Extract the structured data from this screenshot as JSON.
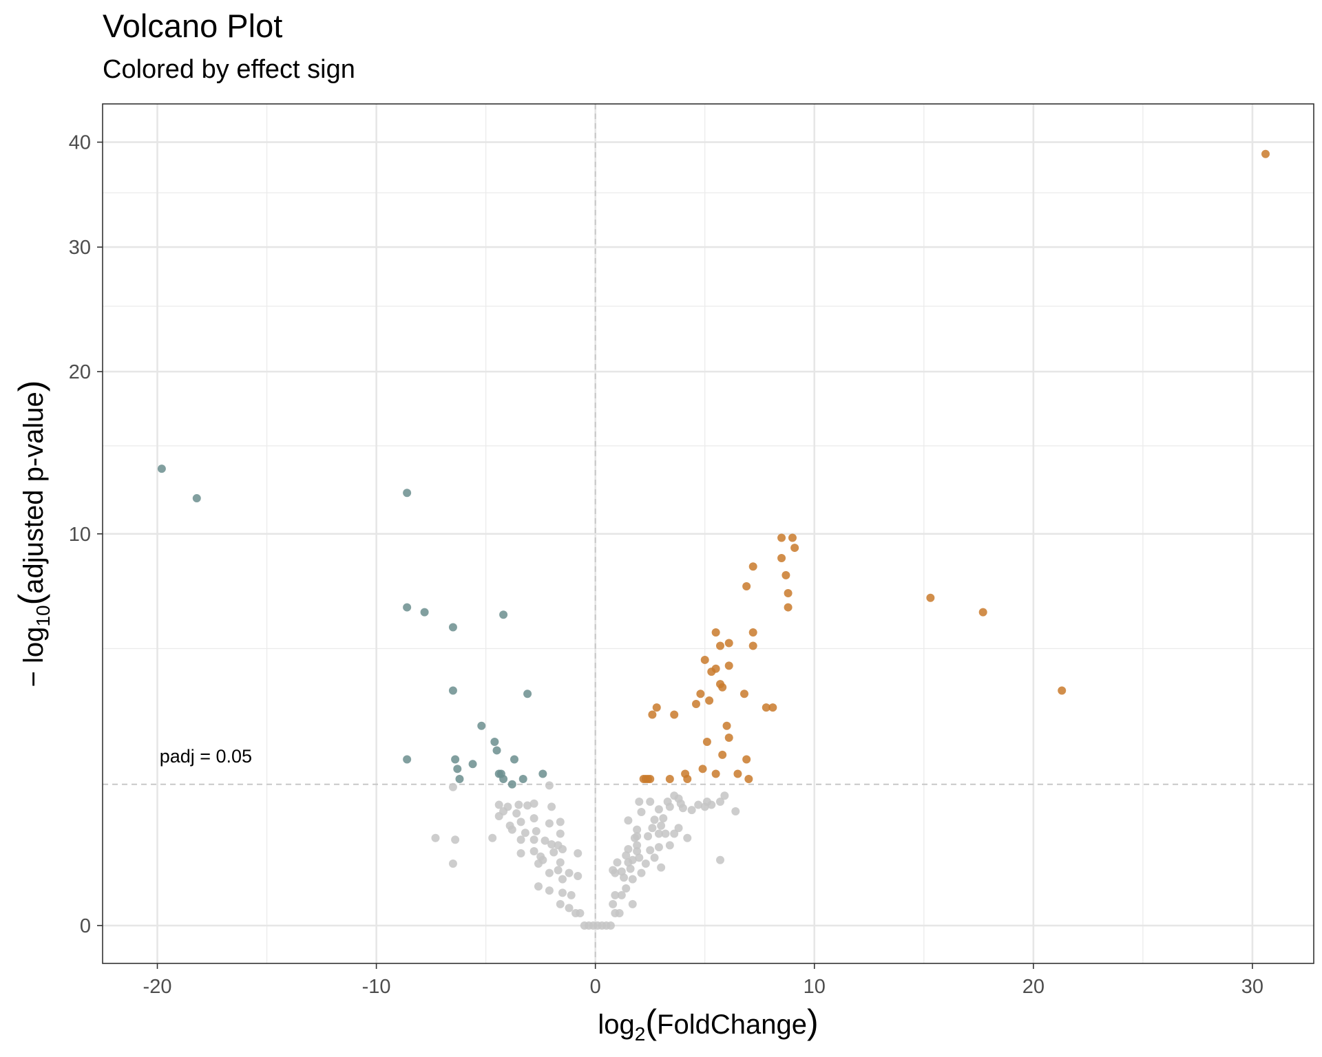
{
  "chart_data": {
    "type": "scatter",
    "title": "Volcano Plot",
    "subtitle": "Colored by effect sign",
    "xlabel": {
      "prefix": "log",
      "sub": "2",
      "inner": "FoldChange"
    },
    "ylabel": {
      "prefix": "− log",
      "sub": "10",
      "inner": "adjusted p-value"
    },
    "xlim": [
      -22.5,
      32.8
    ],
    "y_scale": "sqrt",
    "ylim": [
      -0.05,
      44
    ],
    "x_ticks": [
      -20,
      -10,
      0,
      10,
      20,
      30
    ],
    "x_tick_labels": [
      "-20",
      "-10",
      "0",
      "10",
      "20",
      "30"
    ],
    "y_ticks": [
      0,
      10,
      20,
      30,
      40
    ],
    "y_tick_labels": [
      "0",
      "10",
      "20",
      "30",
      "40"
    ],
    "grid": true,
    "colors": {
      "negative": "#6b8e8e",
      "positive": "#c97a2b",
      "nonsig": "#c4c4c4",
      "ref_line": "#c8c8c8"
    },
    "threshold": {
      "y": 1.3,
      "label": "padj = 0.05"
    },
    "series": [
      {
        "key": "negative",
        "points": [
          [
            -19.8,
            13.6
          ],
          [
            -18.2,
            11.9
          ],
          [
            -8.6,
            12.2
          ],
          [
            -8.6,
            6.6
          ],
          [
            -7.8,
            6.4
          ],
          [
            -6.5,
            5.8
          ],
          [
            -4.2,
            6.3
          ],
          [
            -6.5,
            3.6
          ],
          [
            -3.1,
            3.5
          ],
          [
            -5.2,
            2.6
          ],
          [
            -4.6,
            2.2
          ],
          [
            -4.5,
            2.0
          ],
          [
            -8.6,
            1.8
          ],
          [
            -6.4,
            1.8
          ],
          [
            -5.6,
            1.7
          ],
          [
            -3.7,
            1.8
          ],
          [
            -6.3,
            1.6
          ],
          [
            -4.4,
            1.5
          ],
          [
            -4.3,
            1.5
          ],
          [
            -2.4,
            1.5
          ],
          [
            -6.2,
            1.4
          ],
          [
            -4.2,
            1.4
          ],
          [
            -3.3,
            1.4
          ],
          [
            -3.8,
            1.3
          ]
        ]
      },
      {
        "key": "positive",
        "points": [
          [
            30.6,
            38.8
          ],
          [
            8.5,
            9.8
          ],
          [
            9.0,
            9.8
          ],
          [
            9.1,
            9.3
          ],
          [
            8.5,
            8.8
          ],
          [
            7.2,
            8.4
          ],
          [
            8.7,
            8.0
          ],
          [
            6.9,
            7.5
          ],
          [
            8.8,
            7.2
          ],
          [
            15.3,
            7.0
          ],
          [
            8.8,
            6.6
          ],
          [
            17.7,
            6.4
          ],
          [
            5.5,
            5.6
          ],
          [
            7.2,
            5.6
          ],
          [
            6.1,
            5.2
          ],
          [
            5.7,
            5.1
          ],
          [
            7.2,
            5.1
          ],
          [
            5.0,
            4.6
          ],
          [
            6.1,
            4.4
          ],
          [
            5.5,
            4.3
          ],
          [
            5.3,
            4.2
          ],
          [
            21.3,
            3.6
          ],
          [
            5.7,
            3.8
          ],
          [
            5.8,
            3.7
          ],
          [
            4.8,
            3.5
          ],
          [
            6.8,
            3.5
          ],
          [
            5.2,
            3.3
          ],
          [
            4.6,
            3.2
          ],
          [
            2.8,
            3.1
          ],
          [
            7.8,
            3.1
          ],
          [
            8.1,
            3.1
          ],
          [
            2.6,
            2.9
          ],
          [
            3.6,
            2.9
          ],
          [
            6.0,
            2.6
          ],
          [
            6.1,
            2.3
          ],
          [
            5.1,
            2.2
          ],
          [
            5.8,
            1.9
          ],
          [
            6.9,
            1.8
          ],
          [
            4.9,
            1.6
          ],
          [
            4.1,
            1.5
          ],
          [
            5.5,
            1.5
          ],
          [
            6.5,
            1.5
          ],
          [
            2.2,
            1.4
          ],
          [
            2.3,
            1.4
          ],
          [
            2.4,
            1.4
          ],
          [
            4.2,
            1.4
          ],
          [
            7.0,
            1.4
          ],
          [
            2.5,
            1.4
          ],
          [
            3.4,
            1.4
          ]
        ]
      },
      {
        "key": "nonsig",
        "points": [
          [
            -6.5,
            1.25
          ],
          [
            -2.1,
            1.28
          ],
          [
            -4.4,
            0.95
          ],
          [
            -4.0,
            0.92
          ],
          [
            -3.5,
            0.95
          ],
          [
            -3.1,
            0.94
          ],
          [
            -2.8,
            0.97
          ],
          [
            -2.0,
            0.92
          ],
          [
            -4.2,
            0.85
          ],
          [
            -4.4,
            0.78
          ],
          [
            -3.6,
            0.82
          ],
          [
            -2.8,
            0.75
          ],
          [
            -3.4,
            0.7
          ],
          [
            -3.9,
            0.65
          ],
          [
            -1.6,
            0.7
          ],
          [
            -2.1,
            0.68
          ],
          [
            -3.8,
            0.6
          ],
          [
            -3.2,
            0.56
          ],
          [
            -2.7,
            0.58
          ],
          [
            -1.6,
            0.55
          ],
          [
            -7.3,
            0.5
          ],
          [
            -6.4,
            0.48
          ],
          [
            -4.7,
            0.5
          ],
          [
            -3.4,
            0.48
          ],
          [
            -2.8,
            0.48
          ],
          [
            -2.3,
            0.47
          ],
          [
            -2.0,
            0.43
          ],
          [
            -1.7,
            0.42
          ],
          [
            -1.5,
            0.38
          ],
          [
            -1.9,
            0.35
          ],
          [
            -2.8,
            0.36
          ],
          [
            -3.4,
            0.34
          ],
          [
            -2.5,
            0.31
          ],
          [
            -2.4,
            0.28
          ],
          [
            -0.8,
            0.34
          ],
          [
            -6.5,
            0.25
          ],
          [
            -2.6,
            0.25
          ],
          [
            -1.6,
            0.26
          ],
          [
            -1.7,
            0.2
          ],
          [
            -2.1,
            0.18
          ],
          [
            -1.2,
            0.18
          ],
          [
            -1.5,
            0.14
          ],
          [
            -0.8,
            0.16
          ],
          [
            -2.6,
            0.1
          ],
          [
            -2.1,
            0.08
          ],
          [
            -1.5,
            0.07
          ],
          [
            -1.1,
            0.06
          ],
          [
            -1.6,
            0.03
          ],
          [
            -1.2,
            0.02
          ],
          [
            -0.9,
            0.01
          ],
          [
            -0.7,
            0.01
          ],
          [
            -0.5,
            0.0
          ],
          [
            -0.3,
            0.0
          ],
          [
            -0.1,
            0.0
          ],
          [
            0.1,
            0.0
          ],
          [
            0.3,
            0.0
          ],
          [
            0.5,
            0.0
          ],
          [
            0.7,
            0.0
          ],
          [
            0.9,
            0.01
          ],
          [
            1.1,
            0.01
          ],
          [
            0.8,
            0.03
          ],
          [
            0.9,
            0.06
          ],
          [
            1.2,
            0.06
          ],
          [
            1.7,
            0.03
          ],
          [
            1.4,
            0.09
          ],
          [
            1.7,
            0.14
          ],
          [
            1.3,
            0.15
          ],
          [
            0.9,
            0.18
          ],
          [
            1.2,
            0.19
          ],
          [
            0.8,
            0.2
          ],
          [
            1.6,
            0.21
          ],
          [
            2.1,
            0.18
          ],
          [
            1.5,
            0.26
          ],
          [
            1.0,
            0.26
          ],
          [
            1.7,
            0.28
          ],
          [
            2.3,
            0.25
          ],
          [
            3.0,
            0.22
          ],
          [
            1.4,
            0.32
          ],
          [
            2.0,
            0.3
          ],
          [
            2.7,
            0.3
          ],
          [
            1.9,
            0.36
          ],
          [
            1.5,
            0.38
          ],
          [
            2.5,
            0.37
          ],
          [
            2.9,
            0.4
          ],
          [
            1.9,
            0.42
          ],
          [
            3.4,
            0.42
          ],
          [
            1.8,
            0.5
          ],
          [
            1.9,
            0.52
          ],
          [
            2.4,
            0.52
          ],
          [
            2.9,
            0.55
          ],
          [
            3.2,
            0.55
          ],
          [
            3.6,
            0.55
          ],
          [
            4.2,
            0.5
          ],
          [
            1.9,
            0.6
          ],
          [
            2.6,
            0.62
          ],
          [
            3.0,
            0.65
          ],
          [
            3.8,
            0.62
          ],
          [
            1.5,
            0.72
          ],
          [
            2.7,
            0.73
          ],
          [
            3.1,
            0.75
          ],
          [
            2.1,
            0.84
          ],
          [
            2.9,
            0.88
          ],
          [
            3.4,
            0.92
          ],
          [
            4.0,
            0.9
          ],
          [
            3.9,
            0.97
          ],
          [
            4.7,
            0.95
          ],
          [
            5.0,
            0.92
          ],
          [
            5.3,
            0.95
          ],
          [
            5.1,
            1.0
          ],
          [
            5.7,
            1.0
          ],
          [
            6.4,
            0.85
          ],
          [
            5.9,
            1.1
          ],
          [
            3.6,
            1.1
          ],
          [
            3.8,
            1.05
          ],
          [
            5.7,
            0.28
          ],
          [
            2.0,
            1.0
          ],
          [
            2.5,
            1.0
          ],
          [
            3.3,
            1.0
          ],
          [
            4.4,
            0.87
          ]
        ]
      }
    ]
  }
}
